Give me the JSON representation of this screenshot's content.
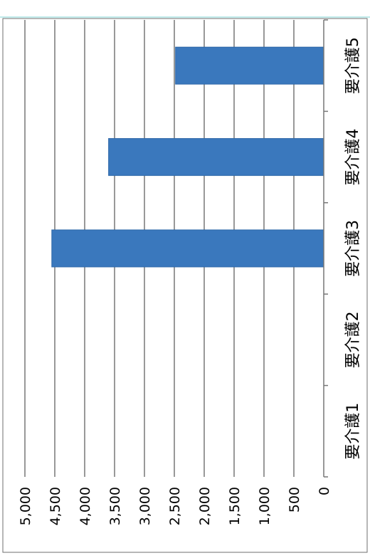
{
  "colors": {
    "bar": "#3a78bd",
    "bar_edge": "#2f68a8",
    "grid": "#555555",
    "axis": "#777777",
    "frame": "#6f6f6f",
    "top_line": "#7fd6d6"
  },
  "chart_data": {
    "type": "bar",
    "orientation": "rotated-90-clockwise",
    "categories": [
      "要介護1",
      "要介護2",
      "要介護3",
      "要介護4",
      "要介護5"
    ],
    "series": [
      {
        "values": [
          0,
          0,
          4550,
          3600,
          2480
        ]
      }
    ],
    "value_ticks": [
      "0",
      "500",
      "1,000",
      "1,500",
      "2,000",
      "2,500",
      "3,000",
      "3,500",
      "4,000",
      "4,500",
      "5,000"
    ],
    "ylim": [
      0,
      5000
    ],
    "grid": true,
    "legend": "none",
    "title": "",
    "xlabel": "",
    "ylabel": ""
  }
}
